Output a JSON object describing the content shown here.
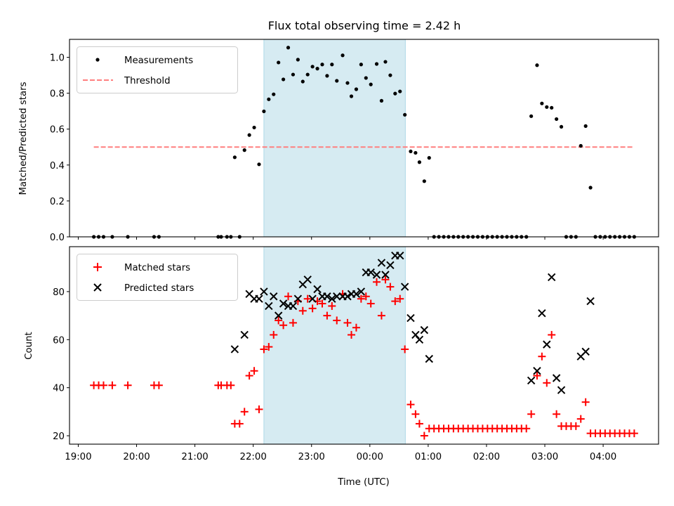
{
  "chart_data": [
    {
      "type": "scatter",
      "title": "Flux total observing time = 2.42 h",
      "xlabel": "",
      "ylabel": "Matched/Predicted stars",
      "ylim": [
        0,
        1.1
      ],
      "yticks": [
        0.0,
        0.2,
        0.4,
        0.6,
        0.8,
        1.0
      ],
      "ytick_labels": [
        "0.0",
        "0.2",
        "0.4",
        "0.6",
        "0.8",
        "1.0"
      ],
      "x_unit": "minutes after 19:00 UTC",
      "xlim_minutes": [
        -9,
        597
      ],
      "legend": {
        "position": "top-left",
        "entries": [
          "Measurements",
          "Threshold"
        ]
      },
      "shaded_interval_minutes": [
        191,
        336.5
      ],
      "shaded_color": "#add8e6",
      "threshold": {
        "value": 0.5,
        "x_range_minutes": [
          16,
          572
        ],
        "color": "#ff7f7f",
        "style": "dashed"
      },
      "series": [
        {
          "name": "Measurements",
          "color": "#000000",
          "marker": "dot",
          "points": [
            [
              16,
              0
            ],
            [
              21,
              0
            ],
            [
              26,
              0
            ],
            [
              35,
              0
            ],
            [
              51,
              0
            ],
            [
              78,
              0
            ],
            [
              83,
              0
            ],
            [
              144,
              0
            ],
            [
              147,
              0
            ],
            [
              153,
              0
            ],
            [
              157,
              0
            ],
            [
              161,
              0.443
            ],
            [
              166,
              0
            ],
            [
              171,
              0.483
            ],
            [
              176,
              0.567
            ],
            [
              181,
              0.609
            ],
            [
              186,
              0.404
            ],
            [
              191,
              0.699
            ],
            [
              196,
              0.766
            ],
            [
              201,
              0.794
            ],
            [
              206,
              0.971
            ],
            [
              211,
              0.877
            ],
            [
              216,
              1.054
            ],
            [
              221,
              0.904
            ],
            [
              226,
              0.987
            ],
            [
              231,
              0.865
            ],
            [
              236,
              0.904
            ],
            [
              241,
              0.948
            ],
            [
              246,
              0.937
            ],
            [
              251,
              0.96
            ],
            [
              256,
              0.897
            ],
            [
              261,
              0.96
            ],
            [
              266,
              0.869
            ],
            [
              272,
              1.011
            ],
            [
              277,
              0.857
            ],
            [
              281,
              0.783
            ],
            [
              286,
              0.822
            ],
            [
              291,
              0.96
            ],
            [
              296,
              0.885
            ],
            [
              301,
              0.849
            ],
            [
              307,
              0.963
            ],
            [
              312,
              0.758
            ],
            [
              316,
              0.975
            ],
            [
              321,
              0.9
            ],
            [
              326,
              0.798
            ],
            [
              331,
              0.81
            ],
            [
              336,
              0.68
            ],
            [
              342,
              0.476
            ],
            [
              347,
              0.468
            ],
            [
              351,
              0.416
            ],
            [
              356,
              0.31
            ],
            [
              361,
              0.44
            ],
            [
              366,
              0
            ],
            [
              371,
              0
            ],
            [
              376,
              0
            ],
            [
              381,
              0
            ],
            [
              386,
              0
            ],
            [
              391,
              0
            ],
            [
              396,
              0
            ],
            [
              401,
              0
            ],
            [
              406,
              0
            ],
            [
              411,
              0
            ],
            [
              416,
              0
            ],
            [
              421,
              0
            ],
            [
              426,
              0
            ],
            [
              431,
              0
            ],
            [
              436,
              0
            ],
            [
              441,
              0
            ],
            [
              446,
              0
            ],
            [
              451,
              0
            ],
            [
              456,
              0
            ],
            [
              461,
              0
            ],
            [
              466,
              0.672
            ],
            [
              472,
              0.956
            ],
            [
              477,
              0.743
            ],
            [
              482,
              0.723
            ],
            [
              487,
              0.719
            ],
            [
              492,
              0.656
            ],
            [
              497,
              0.613
            ],
            [
              502,
              0
            ],
            [
              507,
              0
            ],
            [
              512,
              0
            ],
            [
              517,
              0.507
            ],
            [
              522,
              0.617
            ],
            [
              527,
              0.274
            ],
            [
              532,
              0
            ],
            [
              537,
              0
            ],
            [
              542,
              0
            ],
            [
              547,
              0
            ],
            [
              552,
              0
            ],
            [
              557,
              0
            ],
            [
              562,
              0
            ],
            [
              567,
              0
            ],
            [
              572,
              0
            ]
          ]
        }
      ]
    },
    {
      "type": "scatter",
      "title": "",
      "xlabel": "Time (UTC)",
      "ylabel": "Count",
      "ylim": [
        16.5,
        98.7
      ],
      "yticks": [
        20,
        40,
        60,
        80
      ],
      "ytick_labels": [
        "20",
        "40",
        "60",
        "80"
      ],
      "x_unit": "minutes after 19:00 UTC",
      "xlim_minutes": [
        -9,
        597
      ],
      "xticks_minutes": [
        0,
        60,
        120,
        180,
        240,
        300,
        360,
        420,
        480,
        540
      ],
      "xtick_labels": [
        "19:00",
        "20:00",
        "21:00",
        "22:00",
        "23:00",
        "00:00",
        "01:00",
        "02:00",
        "03:00",
        "04:00"
      ],
      "legend": {
        "position": "top-left",
        "entries": [
          "Matched stars",
          "Predicted stars"
        ]
      },
      "shaded_interval_minutes": [
        191,
        336.5
      ],
      "shaded_color": "#add8e6",
      "series": [
        {
          "name": "Matched stars",
          "color": "#ff0000",
          "marker": "plus",
          "points": [
            [
              16,
              41
            ],
            [
              21,
              41
            ],
            [
              26,
              41
            ],
            [
              35,
              41
            ],
            [
              51,
              41
            ],
            [
              78,
              41
            ],
            [
              83,
              41
            ],
            [
              144,
              41
            ],
            [
              147,
              41
            ],
            [
              153,
              41
            ],
            [
              157,
              41
            ],
            [
              161,
              25
            ],
            [
              166,
              25
            ],
            [
              171,
              30
            ],
            [
              176,
              45
            ],
            [
              181,
              47
            ],
            [
              186,
              31
            ],
            [
              191,
              56
            ],
            [
              196,
              57
            ],
            [
              201,
              62
            ],
            [
              206,
              68
            ],
            [
              211,
              66
            ],
            [
              216,
              78
            ],
            [
              221,
              67
            ],
            [
              226,
              76
            ],
            [
              231,
              72
            ],
            [
              236,
              77
            ],
            [
              241,
              73
            ],
            [
              246,
              76
            ],
            [
              251,
              75
            ],
            [
              256,
              70
            ],
            [
              261,
              74
            ],
            [
              266,
              68
            ],
            [
              272,
              79
            ],
            [
              277,
              67
            ],
            [
              281,
              62
            ],
            [
              286,
              65
            ],
            [
              291,
              77
            ],
            [
              296,
              78
            ],
            [
              301,
              75
            ],
            [
              307,
              84
            ],
            [
              312,
              70
            ],
            [
              316,
              85
            ],
            [
              321,
              82
            ],
            [
              326,
              76
            ],
            [
              331,
              77
            ],
            [
              336,
              56
            ],
            [
              342,
              33
            ],
            [
              347,
              29
            ],
            [
              351,
              25
            ],
            [
              356,
              20
            ],
            [
              361,
              23
            ],
            [
              366,
              23
            ],
            [
              371,
              23
            ],
            [
              376,
              23
            ],
            [
              381,
              23
            ],
            [
              386,
              23
            ],
            [
              391,
              23
            ],
            [
              396,
              23
            ],
            [
              401,
              23
            ],
            [
              406,
              23
            ],
            [
              411,
              23
            ],
            [
              416,
              23
            ],
            [
              421,
              23
            ],
            [
              426,
              23
            ],
            [
              431,
              23
            ],
            [
              436,
              23
            ],
            [
              441,
              23
            ],
            [
              446,
              23
            ],
            [
              451,
              23
            ],
            [
              456,
              23
            ],
            [
              461,
              23
            ],
            [
              466,
              29
            ],
            [
              472,
              45
            ],
            [
              477,
              53
            ],
            [
              482,
              42
            ],
            [
              487,
              62
            ],
            [
              492,
              29
            ],
            [
              497,
              24
            ],
            [
              502,
              24
            ],
            [
              507,
              24
            ],
            [
              512,
              24
            ],
            [
              517,
              27
            ],
            [
              522,
              34
            ],
            [
              527,
              21
            ],
            [
              532,
              21
            ],
            [
              537,
              21
            ],
            [
              542,
              21
            ],
            [
              547,
              21
            ],
            [
              552,
              21
            ],
            [
              557,
              21
            ],
            [
              562,
              21
            ],
            [
              567,
              21
            ],
            [
              572,
              21
            ]
          ]
        },
        {
          "name": "Predicted stars",
          "color": "#000000",
          "marker": "x",
          "points": [
            [
              161,
              56
            ],
            [
              171,
              62
            ],
            [
              176,
              79
            ],
            [
              181,
              77
            ],
            [
              186,
              77
            ],
            [
              191,
              80
            ],
            [
              196,
              74
            ],
            [
              201,
              78
            ],
            [
              206,
              70
            ],
            [
              211,
              75
            ],
            [
              216,
              74
            ],
            [
              221,
              74
            ],
            [
              226,
              77
            ],
            [
              231,
              83
            ],
            [
              236,
              85
            ],
            [
              241,
              77
            ],
            [
              246,
              81
            ],
            [
              251,
              78
            ],
            [
              256,
              78
            ],
            [
              261,
              77
            ],
            [
              266,
              78
            ],
            [
              272,
              78
            ],
            [
              277,
              78
            ],
            [
              281,
              79
            ],
            [
              286,
              79
            ],
            [
              291,
              80
            ],
            [
              296,
              88
            ],
            [
              301,
              88
            ],
            [
              307,
              87
            ],
            [
              312,
              92
            ],
            [
              316,
              87
            ],
            [
              321,
              91
            ],
            [
              326,
              95
            ],
            [
              331,
              95
            ],
            [
              336,
              82
            ],
            [
              342,
              69
            ],
            [
              347,
              62
            ],
            [
              351,
              60
            ],
            [
              356,
              64
            ],
            [
              361,
              52
            ],
            [
              466,
              43
            ],
            [
              472,
              47
            ],
            [
              477,
              71
            ],
            [
              482,
              58
            ],
            [
              487,
              86
            ],
            [
              492,
              44
            ],
            [
              497,
              39
            ],
            [
              517,
              53
            ],
            [
              522,
              55
            ],
            [
              527,
              76
            ]
          ]
        }
      ]
    }
  ]
}
